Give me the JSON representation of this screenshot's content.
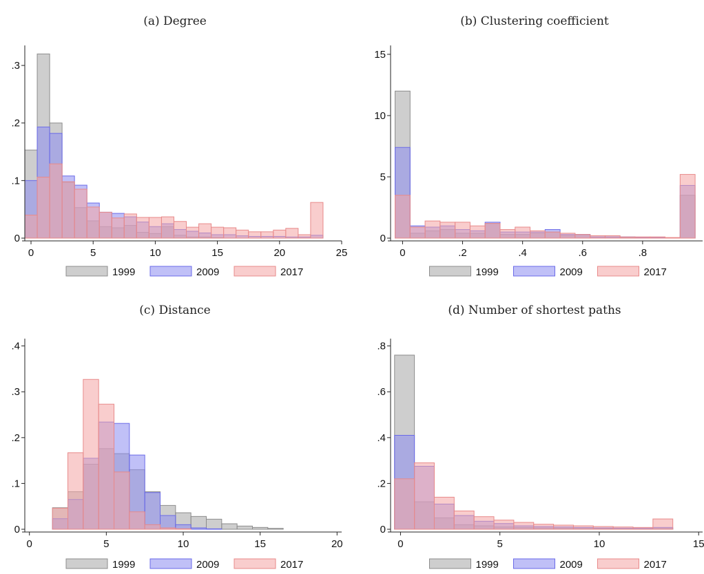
{
  "legend": {
    "series": [
      "1999",
      "2009",
      "2017"
    ],
    "colors": [
      "#a6a6a6",
      "#8c8cf0",
      "#f4a4a4"
    ],
    "edges": [
      "#8c8c8c",
      "#6a6ae8",
      "#e88a8a"
    ]
  },
  "chart_data": [
    {
      "type": "bar",
      "title": "(a) Degree",
      "xlim": [
        -0.5,
        25
      ],
      "ylim": [
        0,
        0.33
      ],
      "xticks": [
        0,
        5,
        10,
        15,
        20,
        25
      ],
      "yticks": [
        0,
        0.1,
        0.2,
        0.3
      ],
      "ytick_labels": [
        "0",
        ".1",
        ".2",
        ".3"
      ],
      "bin_start": -0.5,
      "bin_width": 1,
      "legend_position": "bottom",
      "series": [
        {
          "name": "1999",
          "values": [
            0.153,
            0.32,
            0.2,
            0.097,
            0.053,
            0.03,
            0.02,
            0.018,
            0.022,
            0.01,
            0.008,
            0.02,
            0.005,
            0.002,
            0.002,
            0.001,
            0,
            0,
            0,
            0,
            0,
            0,
            0,
            0
          ]
        },
        {
          "name": "2009",
          "values": [
            0.1,
            0.193,
            0.182,
            0.108,
            0.092,
            0.061,
            0.045,
            0.043,
            0.037,
            0.028,
            0.02,
            0.025,
            0.015,
            0.012,
            0.009,
            0.006,
            0.006,
            0.004,
            0.003,
            0.003,
            0.003,
            0.002,
            0.002,
            0.005
          ]
        },
        {
          "name": "2017",
          "values": [
            0.04,
            0.106,
            0.129,
            0.098,
            0.085,
            0.054,
            0.045,
            0.035,
            0.042,
            0.036,
            0.036,
            0.037,
            0.029,
            0.019,
            0.025,
            0.019,
            0.018,
            0.014,
            0.011,
            0.011,
            0.014,
            0.017,
            0.006,
            0.062
          ]
        }
      ]
    },
    {
      "type": "bar",
      "title": "(b) Clustering coefficient",
      "xlim": [
        -0.04,
        1.0
      ],
      "ylim": [
        0,
        15.5
      ],
      "xticks": [
        0,
        0.2,
        0.4,
        0.6,
        0.8
      ],
      "xtick_labels": [
        "0",
        ".2",
        ".4",
        ".6",
        ".8"
      ],
      "yticks": [
        0,
        5,
        10,
        15
      ],
      "ytick_labels": [
        "0",
        "5",
        "10",
        "15"
      ],
      "bin_start": -0.025,
      "bin_width": 0.05,
      "legend_position": "bottom",
      "series": [
        {
          "name": "1999",
          "values": [
            12.0,
            0.4,
            0.6,
            0.7,
            0.4,
            0.4,
            1.2,
            0.3,
            0.3,
            0.4,
            0.5,
            0.2,
            0.3,
            0.1,
            0.1,
            0.05,
            0.05,
            0.05,
            0,
            3.5
          ]
        },
        {
          "name": "2009",
          "values": [
            7.4,
            1.0,
            0.9,
            1.0,
            0.7,
            0.6,
            1.3,
            0.5,
            0.5,
            0.5,
            0.7,
            0.3,
            0.3,
            0.1,
            0.1,
            0.1,
            0.05,
            0.05,
            0,
            4.3
          ]
        },
        {
          "name": "2017",
          "values": [
            3.5,
            0.9,
            1.4,
            1.3,
            1.3,
            1.0,
            1.2,
            0.7,
            0.9,
            0.6,
            0.5,
            0.4,
            0.3,
            0.2,
            0.2,
            0.1,
            0.1,
            0.1,
            0.05,
            5.2
          ]
        }
      ]
    },
    {
      "type": "bar",
      "title": "(c) Distance",
      "xlim": [
        -0.3,
        20.3
      ],
      "ylim": [
        0,
        0.41
      ],
      "xticks": [
        0,
        5,
        10,
        15,
        20
      ],
      "yticks": [
        0,
        0.1,
        0.2,
        0.3,
        0.4
      ],
      "ytick_labels": [
        "0",
        ".1",
        ".2",
        ".3",
        ".4"
      ],
      "bin_start": 1.5,
      "bin_width": 1,
      "legend_position": "bottom",
      "series": [
        {
          "name": "1999",
          "values": [
            0.047,
            0.082,
            0.142,
            0.176,
            0.165,
            0.13,
            0.082,
            0.052,
            0.036,
            0.028,
            0.022,
            0.012,
            0.007,
            0.004,
            0.002
          ]
        },
        {
          "name": "2009",
          "values": [
            0.023,
            0.065,
            0.155,
            0.234,
            0.231,
            0.162,
            0.08,
            0.03,
            0.01,
            0.003,
            0.001,
            0,
            0,
            0,
            0
          ]
        },
        {
          "name": "2017",
          "values": [
            0.046,
            0.167,
            0.327,
            0.273,
            0.125,
            0.038,
            0.01,
            0.003,
            0.001,
            0,
            0,
            0,
            0,
            0,
            0
          ]
        }
      ]
    },
    {
      "type": "bar",
      "title": "(d) Number of shortest paths",
      "xlim": [
        -0.5,
        15.2
      ],
      "ylim": [
        0,
        0.82
      ],
      "xticks": [
        0,
        5,
        10,
        15
      ],
      "yticks": [
        0,
        0.2,
        0.4,
        0.6,
        0.8
      ],
      "ytick_labels": [
        "0",
        ".2",
        ".4",
        ".6",
        ".8"
      ],
      "bin_start": -0.3,
      "bin_width": 1.0,
      "legend_position": "bottom",
      "series": [
        {
          "name": "1999",
          "values": [
            0.76,
            0.12,
            0.05,
            0.02,
            0.015,
            0.01,
            0.008,
            0.006,
            0.005,
            0.004,
            0.003,
            0.002,
            0.002,
            0.003
          ]
        },
        {
          "name": "2009",
          "values": [
            0.41,
            0.275,
            0.11,
            0.06,
            0.035,
            0.025,
            0.015,
            0.012,
            0.01,
            0.008,
            0.006,
            0.005,
            0.004,
            0.008
          ]
        },
        {
          "name": "2017",
          "values": [
            0.22,
            0.29,
            0.14,
            0.08,
            0.055,
            0.04,
            0.03,
            0.022,
            0.018,
            0.015,
            0.012,
            0.01,
            0.008,
            0.045
          ]
        }
      ]
    }
  ]
}
